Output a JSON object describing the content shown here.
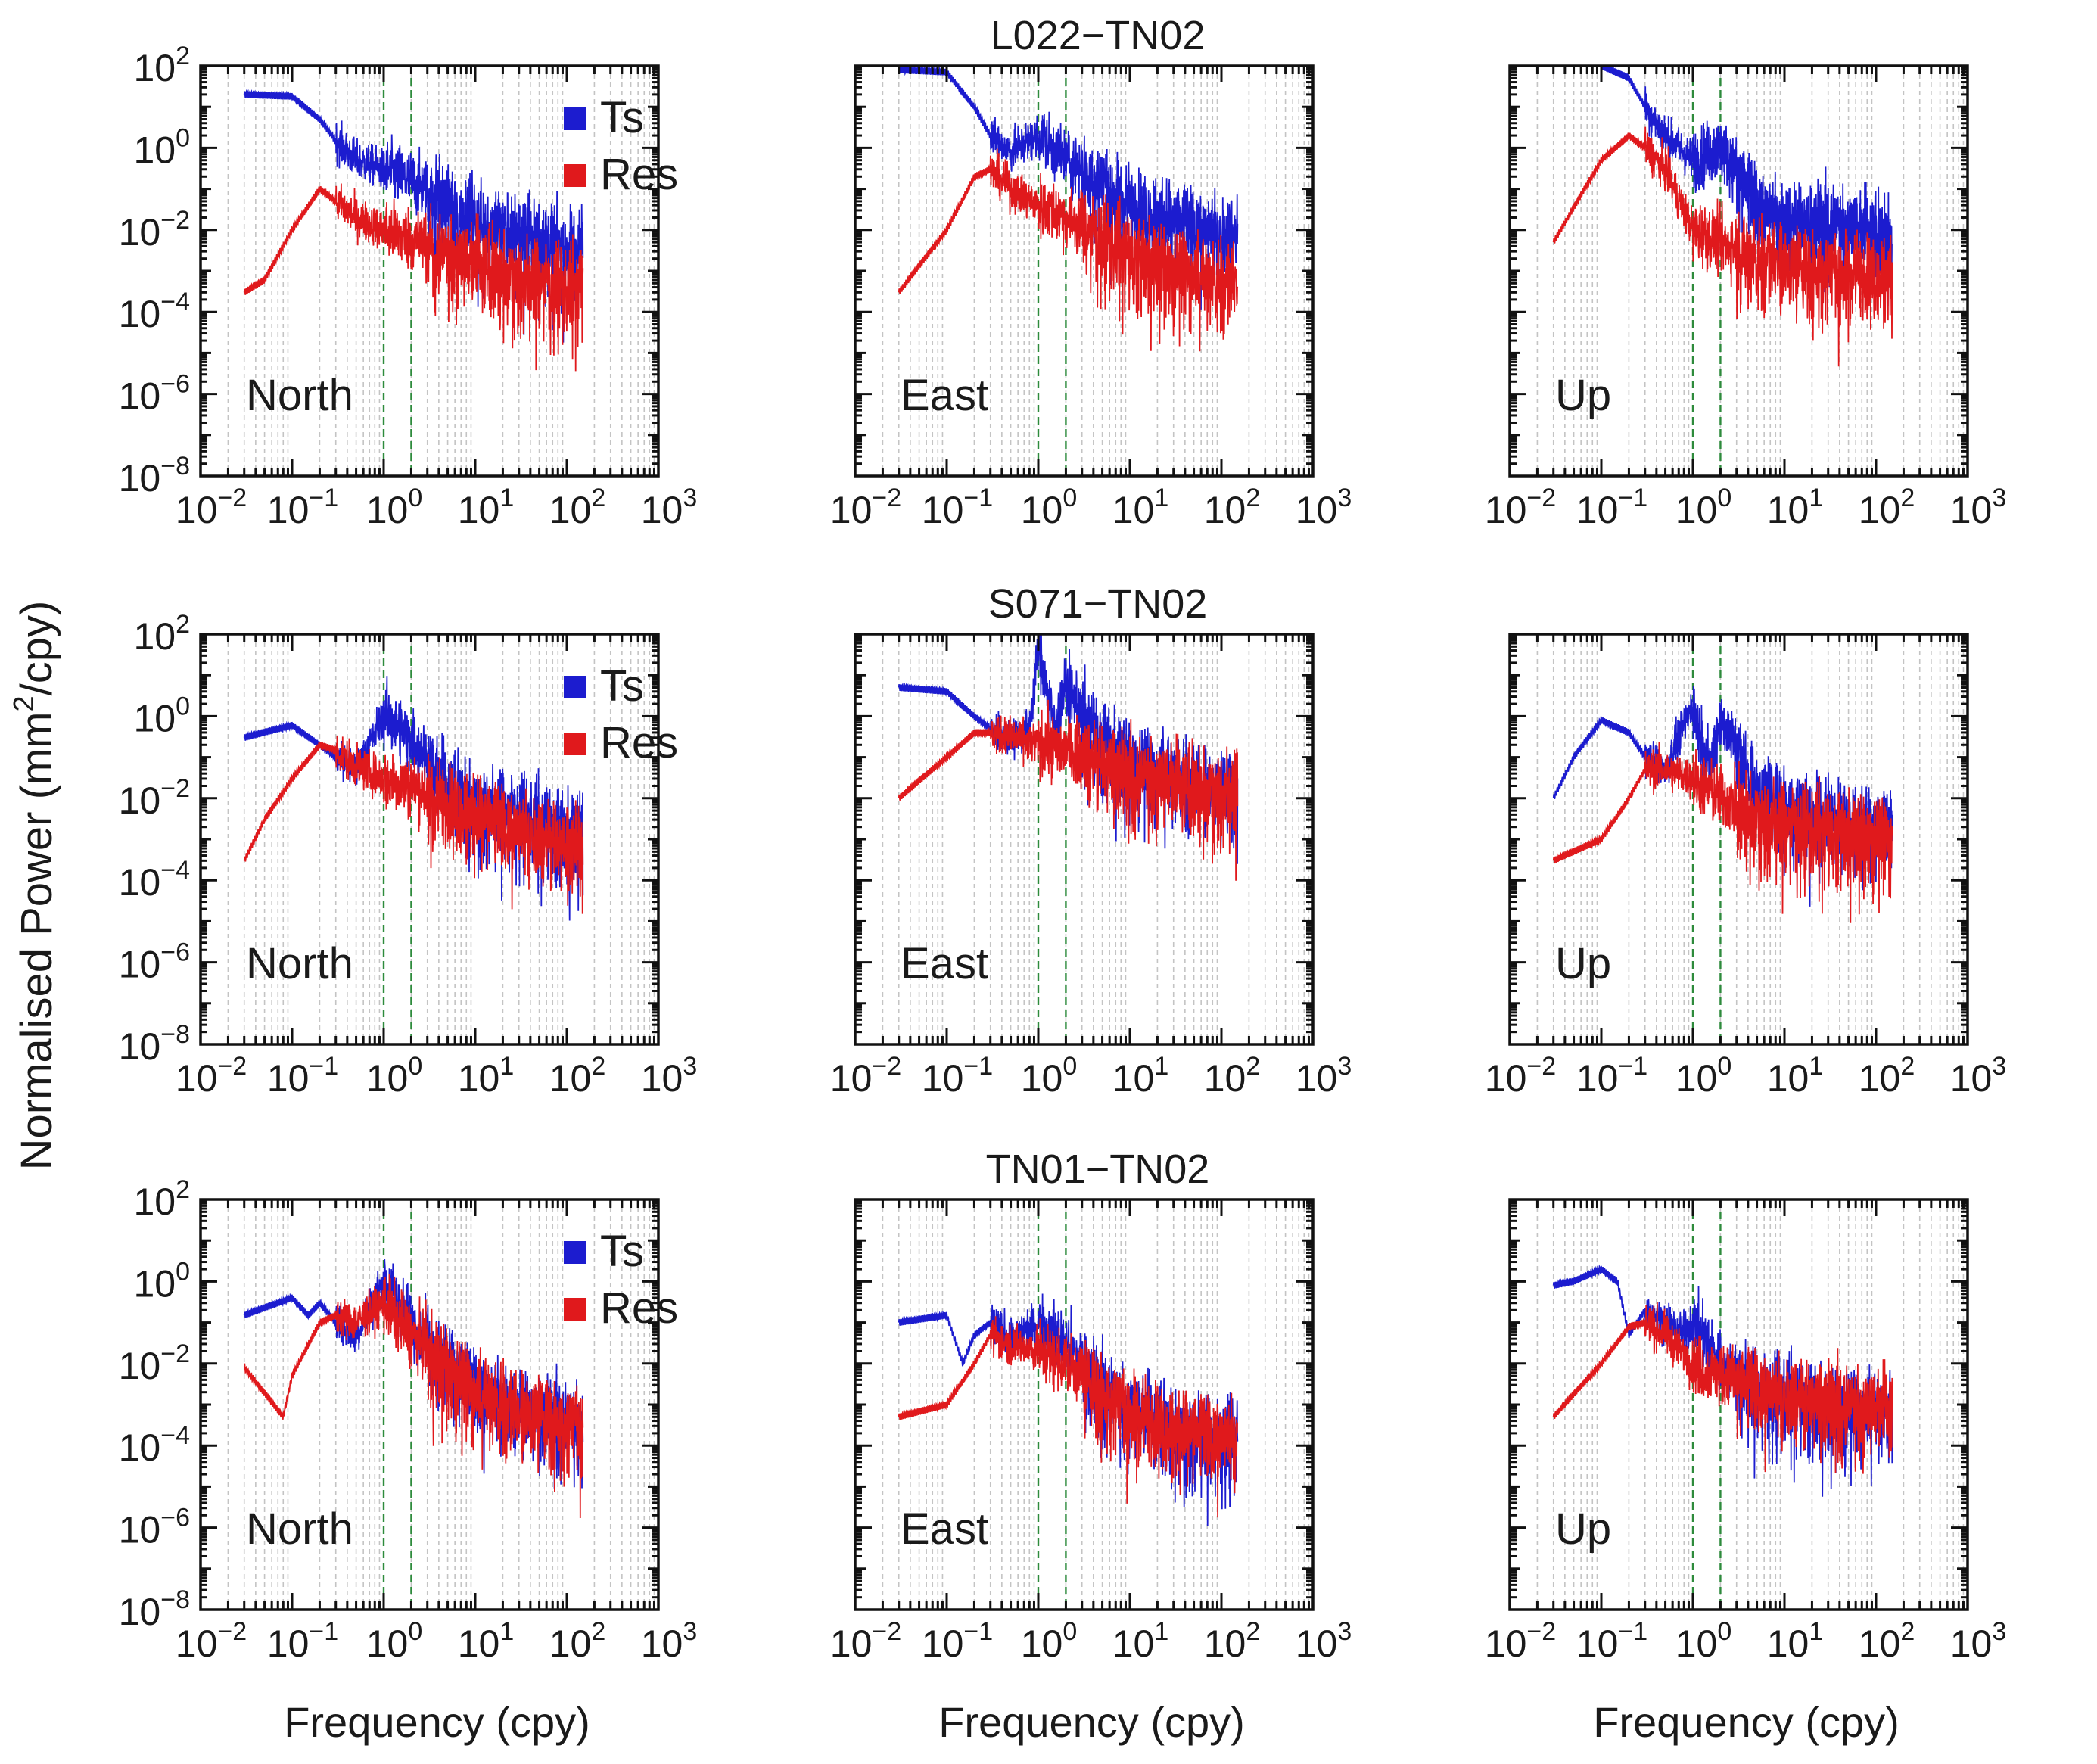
{
  "figure": {
    "ylabel": "Normalised Power (mm²/cpy)",
    "ylabel_main": "Normalised Power (mm",
    "ylabel_sup": "2",
    "ylabel_tail": "/cpy)",
    "xlabel": "Frequency (cpy)"
  },
  "colors": {
    "ts": "#1c1ccf",
    "res": "#e0191c",
    "guide": "#2e8b3c",
    "grid": "#c4c4c4",
    "axis": "#111111"
  },
  "legend": {
    "ts_label": "Ts",
    "res_label": "Res"
  },
  "x_ticks": [
    {
      "base": "10",
      "exp": "−2"
    },
    {
      "base": "10",
      "exp": "−1"
    },
    {
      "base": "10",
      "exp": "0"
    },
    {
      "base": "10",
      "exp": "1"
    },
    {
      "base": "10",
      "exp": "2"
    },
    {
      "base": "10",
      "exp": "3"
    }
  ],
  "y_ticks": [
    {
      "base": "10",
      "exp": "2"
    },
    {
      "base": "10",
      "exp": "0"
    },
    {
      "base": "10",
      "exp": "−2"
    },
    {
      "base": "10",
      "exp": "−4"
    },
    {
      "base": "10",
      "exp": "−6"
    },
    {
      "base": "10",
      "exp": "−8"
    }
  ],
  "chart_data": [
    {
      "type": "line",
      "row": 0,
      "col": 0,
      "title": "L022−TN02",
      "panel_label": "North",
      "xlabel": "Frequency (cpy)",
      "ylabel": "Normalised Power (mm²/cpy)",
      "xscale": "log",
      "yscale": "log",
      "xlim": [
        0.01,
        1000
      ],
      "ylim": [
        1e-08,
        100
      ],
      "reference_lines_x": [
        1,
        2
      ],
      "legend": true,
      "series": [
        {
          "name": "Ts",
          "x": [
            0.03,
            0.1,
            0.2,
            0.3,
            0.5,
            1,
            2,
            5,
            10,
            30,
            100,
            150
          ],
          "values": [
            20,
            18,
            5,
            1.5,
            0.5,
            0.3,
            0.15,
            0.05,
            0.02,
            0.01,
            0.005,
            0.005
          ]
        },
        {
          "name": "Res",
          "x": [
            0.03,
            0.05,
            0.1,
            0.2,
            0.3,
            0.5,
            1,
            2,
            5,
            10,
            30,
            100,
            150
          ],
          "values": [
            0.0003,
            0.0006,
            0.01,
            0.1,
            0.05,
            0.02,
            0.01,
            0.006,
            0.003,
            0.002,
            0.001,
            0.0005,
            0.0005
          ]
        }
      ]
    },
    {
      "type": "line",
      "row": 0,
      "col": 1,
      "title": "L022−TN02",
      "panel_label": "East",
      "xlabel": "Frequency (cpy)",
      "ylabel": "Normalised Power (mm²/cpy)",
      "xscale": "log",
      "yscale": "log",
      "xlim": [
        0.01,
        1000
      ],
      "ylim": [
        1e-08,
        100
      ],
      "reference_lines_x": [
        1,
        2
      ],
      "legend": false,
      "series": [
        {
          "name": "Ts",
          "x": [
            0.03,
            0.1,
            0.2,
            0.3,
            0.5,
            1,
            2,
            5,
            10,
            30,
            100,
            150
          ],
          "values": [
            80,
            70,
            10,
            2,
            0.8,
            2,
            0.5,
            0.2,
            0.05,
            0.02,
            0.01,
            0.01
          ]
        },
        {
          "name": "Res",
          "x": [
            0.03,
            0.1,
            0.2,
            0.3,
            0.5,
            1,
            2,
            5,
            10,
            30,
            100,
            150
          ],
          "values": [
            0.0003,
            0.01,
            0.2,
            0.3,
            0.1,
            0.04,
            0.02,
            0.008,
            0.003,
            0.0015,
            0.0008,
            0.0008
          ]
        }
      ]
    },
    {
      "type": "line",
      "row": 0,
      "col": 2,
      "title": "L022−TN02",
      "panel_label": "Up",
      "xlabel": "Frequency (cpy)",
      "ylabel": "Normalised Power (mm²/cpy)",
      "xscale": "log",
      "yscale": "log",
      "xlim": [
        0.01,
        1000
      ],
      "ylim": [
        1e-08,
        100
      ],
      "reference_lines_x": [
        1,
        2
      ],
      "legend": false,
      "series": [
        {
          "name": "Ts",
          "x": [
            0.1,
            0.2,
            0.3,
            0.5,
            0.7,
            1,
            2,
            3,
            5,
            10,
            30,
            100,
            150
          ],
          "values": [
            100,
            50,
            10,
            2,
            1,
            0.5,
            1,
            0.3,
            0.05,
            0.02,
            0.02,
            0.01,
            0.01
          ]
        },
        {
          "name": "Res",
          "x": [
            0.03,
            0.1,
            0.2,
            0.3,
            0.5,
            1,
            2,
            5,
            10,
            30,
            100,
            150
          ],
          "values": [
            0.005,
            0.5,
            2,
            1,
            0.3,
            0.01,
            0.005,
            0.003,
            0.002,
            0.0015,
            0.001,
            0.001
          ]
        }
      ]
    },
    {
      "type": "line",
      "row": 1,
      "col": 0,
      "title": "S071−TN02",
      "panel_label": "North",
      "xlabel": "Frequency (cpy)",
      "ylabel": "Normalised Power (mm²/cpy)",
      "xscale": "log",
      "yscale": "log",
      "xlim": [
        0.01,
        1000
      ],
      "ylim": [
        1e-08,
        100
      ],
      "reference_lines_x": [
        1,
        2
      ],
      "legend": true,
      "series": [
        {
          "name": "Ts",
          "x": [
            0.03,
            0.1,
            0.2,
            0.3,
            0.5,
            1,
            2,
            5,
            10,
            30,
            100,
            150
          ],
          "values": [
            0.3,
            0.6,
            0.2,
            0.1,
            0.05,
            1,
            0.3,
            0.02,
            0.01,
            0.005,
            0.002,
            0.002
          ]
        },
        {
          "name": "Res",
          "x": [
            0.03,
            0.05,
            0.1,
            0.2,
            0.3,
            0.5,
            1,
            2,
            5,
            10,
            30,
            100,
            150
          ],
          "values": [
            0.0003,
            0.003,
            0.03,
            0.2,
            0.15,
            0.06,
            0.03,
            0.02,
            0.01,
            0.005,
            0.002,
            0.001,
            0.001
          ]
        }
      ]
    },
    {
      "type": "line",
      "row": 1,
      "col": 1,
      "title": "S071−TN02",
      "panel_label": "East",
      "xlabel": "Frequency (cpy)",
      "ylabel": "Normalised Power (mm²/cpy)",
      "xscale": "log",
      "yscale": "log",
      "xlim": [
        0.01,
        1000
      ],
      "ylim": [
        1e-08,
        100
      ],
      "reference_lines_x": [
        1,
        2
      ],
      "legend": false,
      "series": [
        {
          "name": "Ts",
          "x": [
            0.03,
            0.1,
            0.2,
            0.3,
            0.5,
            0.8,
            1,
            1.5,
            2,
            5,
            10,
            30,
            100,
            150
          ],
          "values": [
            5,
            4,
            1,
            0.5,
            0.3,
            0.5,
            50,
            0.5,
            5,
            0.3,
            0.1,
            0.05,
            0.02,
            0.02
          ]
        },
        {
          "name": "Res",
          "x": [
            0.03,
            0.1,
            0.2,
            0.3,
            0.5,
            1,
            2,
            5,
            10,
            30,
            100,
            150
          ],
          "values": [
            0.01,
            0.1,
            0.4,
            0.4,
            0.3,
            0.2,
            0.15,
            0.1,
            0.05,
            0.03,
            0.02,
            0.02
          ]
        }
      ]
    },
    {
      "type": "line",
      "row": 1,
      "col": 2,
      "title": "S071−TN02",
      "panel_label": "Up",
      "xlabel": "Frequency (cpy)",
      "ylabel": "Normalised Power (mm²/cpy)",
      "xscale": "log",
      "yscale": "log",
      "xlim": [
        0.01,
        1000
      ],
      "ylim": [
        1e-08,
        100
      ],
      "reference_lines_x": [
        1,
        2
      ],
      "legend": false,
      "series": [
        {
          "name": "Ts",
          "x": [
            0.03,
            0.05,
            0.1,
            0.2,
            0.3,
            0.5,
            1,
            1.5,
            2,
            5,
            10,
            30,
            100,
            150
          ],
          "values": [
            0.01,
            0.1,
            0.8,
            0.4,
            0.1,
            0.05,
            2,
            0.05,
            1,
            0.02,
            0.01,
            0.005,
            0.002,
            0.002
          ]
        },
        {
          "name": "Res",
          "x": [
            0.03,
            0.1,
            0.2,
            0.3,
            0.5,
            1,
            2,
            5,
            10,
            30,
            100,
            150
          ],
          "values": [
            0.0003,
            0.001,
            0.01,
            0.05,
            0.05,
            0.03,
            0.01,
            0.005,
            0.003,
            0.002,
            0.0015,
            0.0015
          ]
        }
      ]
    },
    {
      "type": "line",
      "row": 2,
      "col": 0,
      "title": "TN01−TN02",
      "panel_label": "North",
      "xlabel": "Frequency (cpy)",
      "ylabel": "Normalised Power (mm²/cpy)",
      "xscale": "log",
      "yscale": "log",
      "xlim": [
        0.01,
        1000
      ],
      "ylim": [
        1e-08,
        100
      ],
      "reference_lines_x": [
        1,
        2
      ],
      "legend": true,
      "series": [
        {
          "name": "Ts",
          "x": [
            0.03,
            0.1,
            0.15,
            0.2,
            0.3,
            0.5,
            1,
            2,
            5,
            10,
            30,
            100,
            150
          ],
          "values": [
            0.15,
            0.4,
            0.15,
            0.3,
            0.1,
            0.05,
            1,
            0.1,
            0.01,
            0.003,
            0.001,
            0.0005,
            0.0005
          ]
        },
        {
          "name": "Res",
          "x": [
            0.03,
            0.08,
            0.1,
            0.2,
            0.3,
            0.5,
            1,
            2,
            5,
            10,
            30,
            100,
            150
          ],
          "values": [
            0.008,
            0.0005,
            0.005,
            0.1,
            0.15,
            0.1,
            0.3,
            0.05,
            0.01,
            0.003,
            0.001,
            0.0005,
            0.0005
          ]
        }
      ]
    },
    {
      "type": "line",
      "row": 2,
      "col": 1,
      "title": "TN01−TN02",
      "panel_label": "East",
      "xlabel": "Frequency (cpy)",
      "ylabel": "Normalised Power (mm²/cpy)",
      "xscale": "log",
      "yscale": "log",
      "xlim": [
        0.01,
        1000
      ],
      "ylim": [
        1e-08,
        100
      ],
      "reference_lines_x": [
        1,
        2
      ],
      "legend": false,
      "series": [
        {
          "name": "Ts",
          "x": [
            0.03,
            0.1,
            0.15,
            0.2,
            0.3,
            0.5,
            1,
            2,
            5,
            10,
            30,
            100,
            150
          ],
          "values": [
            0.1,
            0.15,
            0.01,
            0.05,
            0.1,
            0.04,
            0.1,
            0.03,
            0.003,
            0.001,
            0.0003,
            0.0002,
            0.0002
          ]
        },
        {
          "name": "Res",
          "x": [
            0.03,
            0.1,
            0.2,
            0.3,
            0.5,
            1,
            2,
            5,
            10,
            30,
            100,
            150
          ],
          "values": [
            0.0005,
            0.001,
            0.01,
            0.05,
            0.03,
            0.02,
            0.01,
            0.003,
            0.001,
            0.0003,
            0.0002,
            0.0002
          ]
        }
      ]
    },
    {
      "type": "line",
      "row": 2,
      "col": 2,
      "title": "TN01−TN02",
      "panel_label": "Up",
      "xlabel": "Frequency (cpy)",
      "ylabel": "Normalised Power (mm²/cpy)",
      "xscale": "log",
      "yscale": "log",
      "xlim": [
        0.01,
        1000
      ],
      "ylim": [
        1e-08,
        100
      ],
      "reference_lines_x": [
        1,
        2
      ],
      "legend": false,
      "series": [
        {
          "name": "Ts",
          "x": [
            0.03,
            0.05,
            0.1,
            0.15,
            0.2,
            0.3,
            0.5,
            0.8,
            1,
            2,
            5,
            10,
            30,
            100,
            150
          ],
          "values": [
            0.8,
            1,
            2,
            1,
            0.05,
            0.2,
            0.1,
            0.05,
            0.1,
            0.01,
            0.003,
            0.002,
            0.001,
            0.001,
            0.001
          ]
        },
        {
          "name": "Res",
          "x": [
            0.03,
            0.1,
            0.2,
            0.3,
            0.5,
            1,
            2,
            5,
            10,
            30,
            100,
            150
          ],
          "values": [
            0.0005,
            0.01,
            0.08,
            0.1,
            0.05,
            0.01,
            0.005,
            0.003,
            0.002,
            0.0015,
            0.001,
            0.001
          ]
        }
      ]
    }
  ]
}
